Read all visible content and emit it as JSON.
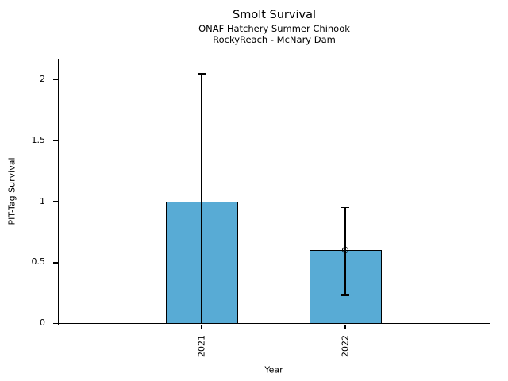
{
  "header": {
    "title": "Smolt Survival",
    "subtitle1": "ONAF Hatchery Summer Chinook",
    "subtitle2": "RockyReach - McNary Dam"
  },
  "chart_data": {
    "type": "bar",
    "title": "Smolt Survival",
    "subtitle": [
      "ONAF Hatchery Summer Chinook",
      "RockyReach - McNary Dam"
    ],
    "xlabel": "Year",
    "ylabel": "PIT-Tag Survival",
    "categories": [
      "2021",
      "2022"
    ],
    "values": [
      1.0,
      0.6
    ],
    "error_low": [
      0.0,
      0.23
    ],
    "error_high": [
      2.05,
      0.95
    ],
    "point_markers": [
      null,
      0.6
    ],
    "yticks": [
      0,
      0.5,
      1,
      1.5,
      2
    ],
    "ytick_labels": [
      "0",
      "0.5",
      "1",
      "1.5",
      "2"
    ],
    "ylim": [
      0,
      2.18
    ],
    "grid": false,
    "legend_position": "none",
    "bar_color": "#58ABD5",
    "edge_color": "#000000",
    "background_color": "#FFFFFF"
  }
}
